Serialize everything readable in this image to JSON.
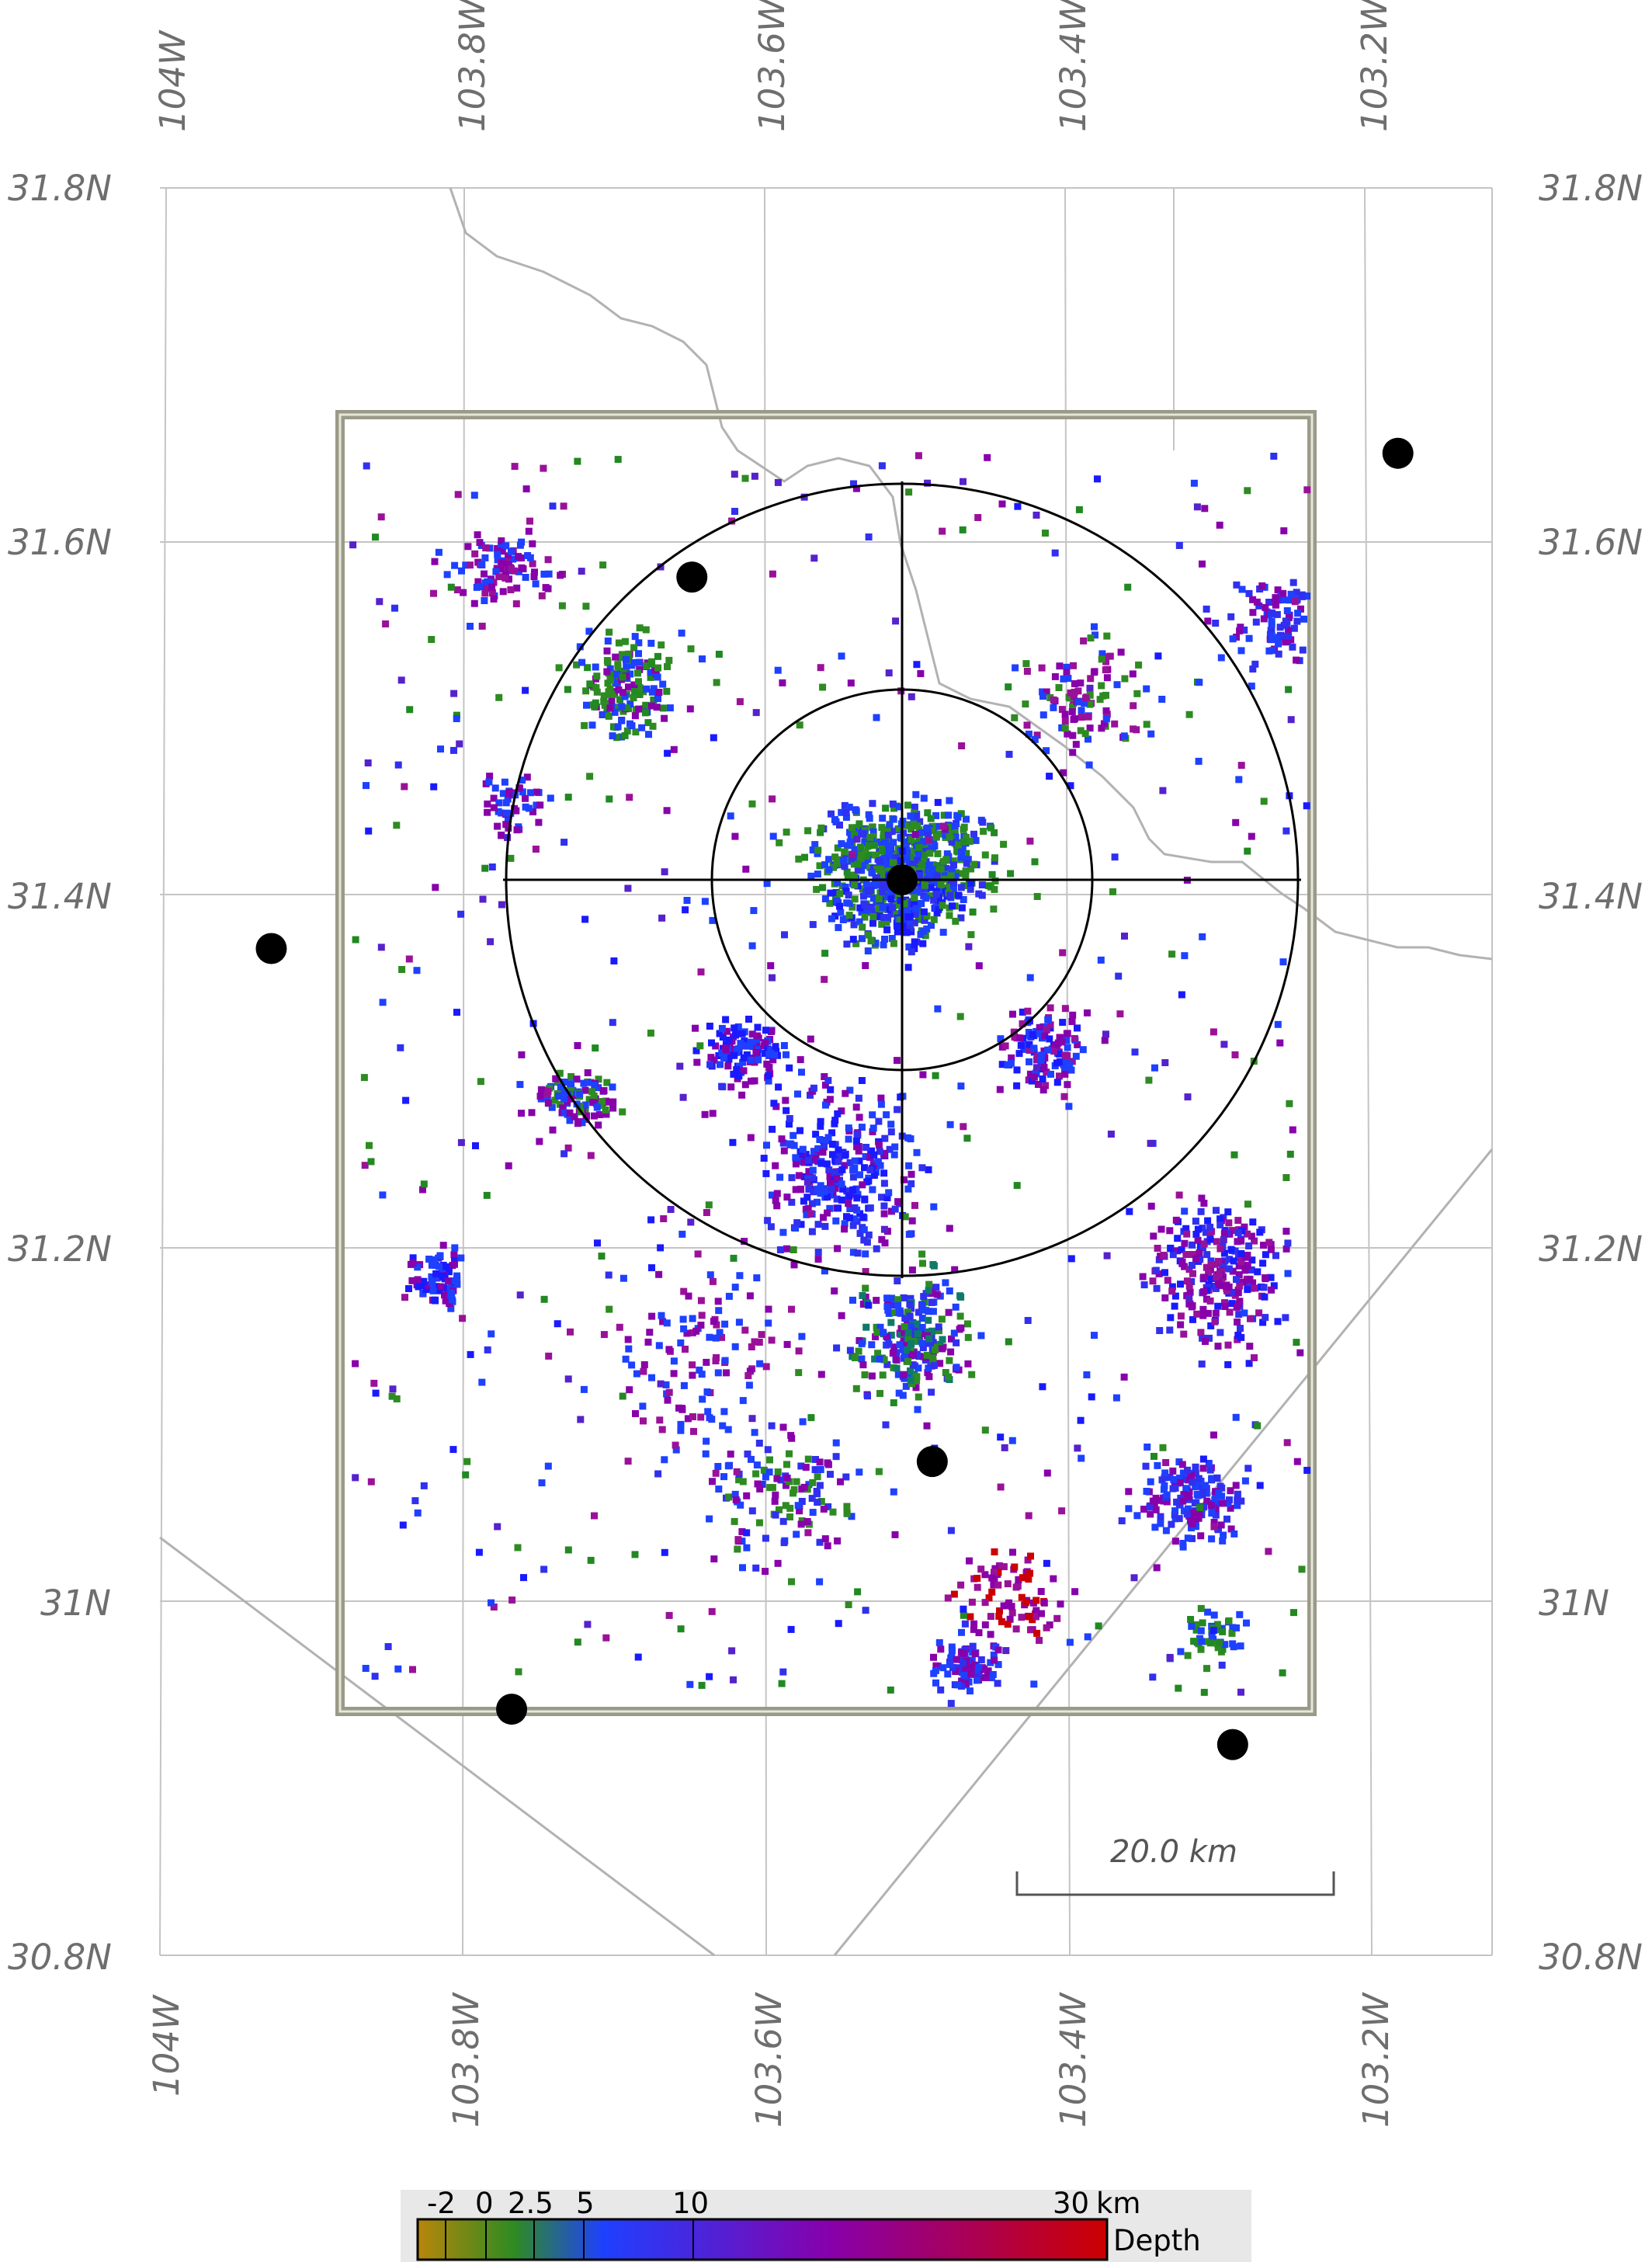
{
  "map": {
    "lon_labels": [
      "104W",
      "103.8W",
      "103.6W",
      "103.4W",
      "103.2W"
    ],
    "lat_labels": [
      "31.8N",
      "31.6N",
      "31.4N",
      "31.2N",
      "31N",
      "30.8N"
    ],
    "scale_bar": {
      "label": "20.0 km",
      "distance_km": 20.0
    },
    "center_marker": {
      "type": "crosshair-with-circles",
      "lon": -103.49,
      "lat": 31.41,
      "rings": 2
    },
    "stations": [
      {
        "lon": -103.18,
        "lat": 31.65
      },
      {
        "lon": -103.65,
        "lat": 31.58
      },
      {
        "lon": -103.93,
        "lat": 31.37
      },
      {
        "lon": -103.49,
        "lat": 31.08
      },
      {
        "lon": -103.77,
        "lat": 30.94
      },
      {
        "lon": -103.29,
        "lat": 30.92
      }
    ],
    "event_colors_note": "points colored by depth",
    "colors": {
      "grid": "#c4c4c4",
      "boundary": "#b2b2b2",
      "region_box": "#9a9a88",
      "rings": "#000000",
      "station": "#000000"
    }
  },
  "colorbar": {
    "ticks": [
      "-2",
      "0",
      "2.5",
      "5",
      "10",
      "30"
    ],
    "unit": "km",
    "title": "Depth",
    "range": [
      -2,
      30
    ],
    "stops": [
      "#b8860b",
      "#2e8b22",
      "#1e40ff",
      "#8800aa",
      "#cc0000"
    ]
  }
}
